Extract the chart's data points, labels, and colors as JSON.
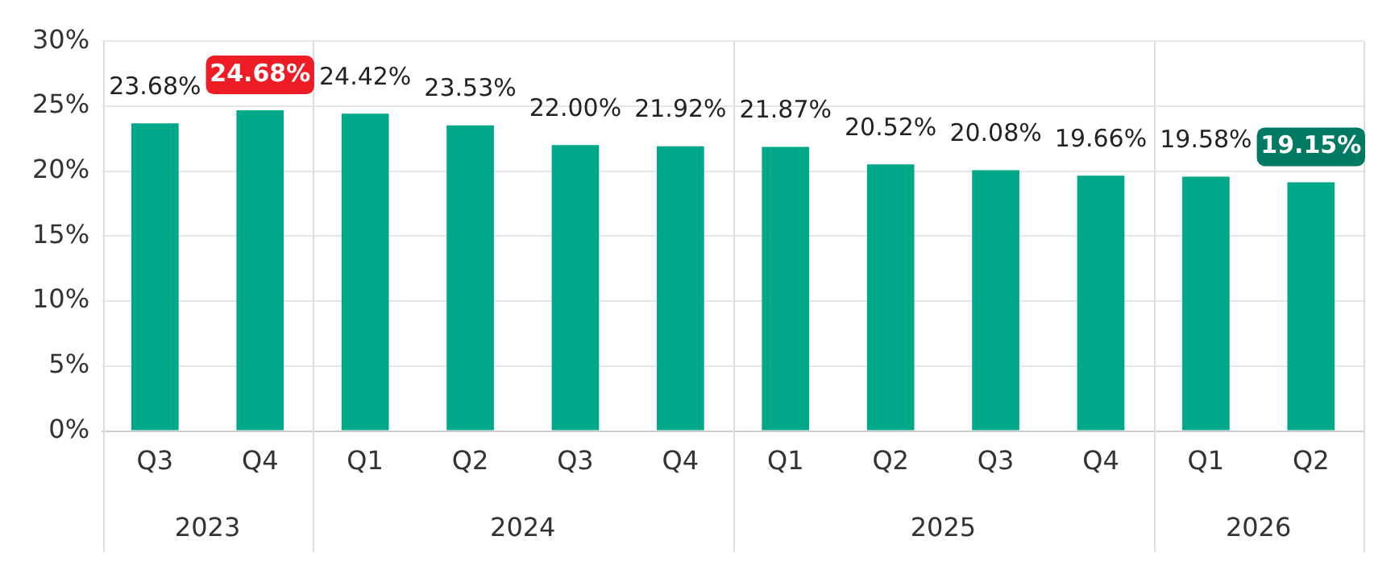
{
  "chart_data": {
    "type": "bar",
    "categories": [
      "Q3",
      "Q4",
      "Q1",
      "Q2",
      "Q3",
      "Q4",
      "Q1",
      "Q2",
      "Q3",
      "Q4",
      "Q1",
      "Q2"
    ],
    "values": [
      23.68,
      24.68,
      24.42,
      23.53,
      22.0,
      21.92,
      21.87,
      20.52,
      20.08,
      19.66,
      19.58,
      19.15
    ],
    "color": "#00a88a",
    "value_labels": [
      "23.68%",
      "24.68%",
      "24.42%",
      "23.53%",
      "22.00%",
      "21.92%",
      "21.87%",
      "20.52%",
      "20.08%",
      "19.66%",
      "19.58%",
      "19.15%"
    ],
    "ylim": [
      0,
      30
    ],
    "yticks": [
      {
        "value": 0,
        "label": "0%"
      },
      {
        "value": 5,
        "label": "5%"
      },
      {
        "value": 10,
        "label": "10%"
      },
      {
        "value": 15,
        "label": "15%"
      },
      {
        "value": 20,
        "label": "20%"
      },
      {
        "value": 25,
        "label": "25%"
      },
      {
        "value": 30,
        "label": "30%"
      }
    ],
    "annotations": [
      "2023",
      "2024",
      "2025",
      "2026"
    ],
    "grid": "y",
    "legend": false
  }
}
